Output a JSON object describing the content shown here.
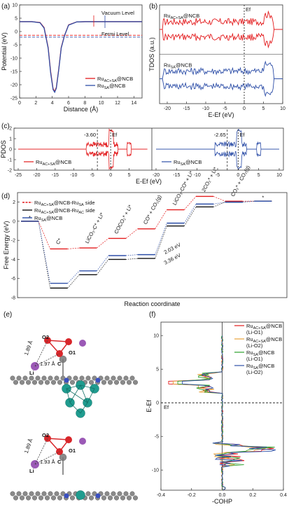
{
  "chart_data": [
    {
      "panel": "(a)",
      "type": "line",
      "xlabel": "Distance (Å)",
      "ylabel": "Potential (eV)",
      "xlim": [
        0,
        15
      ],
      "ylim": [
        -25,
        10
      ],
      "xticks": [
        "0",
        "2",
        "4",
        "6",
        "8",
        "10",
        "12",
        "14"
      ],
      "yticks": [
        "-25",
        "-20",
        "-15",
        "-10",
        "-5",
        "0",
        "5",
        "10"
      ],
      "annotations": [
        "Vacuum Level",
        "Fermi Level"
      ],
      "vacuum_level": 3.7,
      "fermi_levels": {
        "ac_sa": -1.4,
        "sa": -2.1
      },
      "series": [
        {
          "name": "Ru<sub>AC+SA</sub>@NCB",
          "label_main": "Ru",
          "label_sub": "AC+SA",
          "label_tail": "@NCB",
          "color": "#e31a1c",
          "x": [
            0,
            1.5,
            2.5,
            3.0,
            3.5,
            3.8,
            4.1,
            4.3,
            4.5,
            4.8,
            5.1,
            5.5,
            6.0,
            7.0,
            8.0,
            15
          ],
          "y": [
            3.7,
            3.7,
            3.4,
            1.5,
            -6,
            -15,
            -21.5,
            -22.5,
            -21,
            -14,
            -6,
            -1.5,
            2.5,
            3.6,
            3.7,
            3.7
          ]
        },
        {
          "name": "Ru<sub>SA</sub>@NCB",
          "label_main": "Ru",
          "label_sub": "SA",
          "label_tail": "@NCB",
          "color": "#2e4fa8",
          "x": [
            0,
            1.5,
            2.5,
            3.0,
            3.5,
            3.8,
            4.1,
            4.3,
            4.5,
            4.8,
            5.1,
            5.5,
            6.0,
            7.0,
            8.0,
            15
          ],
          "y": [
            3.7,
            3.7,
            3.3,
            1.3,
            -6.3,
            -15.5,
            -21.8,
            -22.8,
            -21.3,
            -14.3,
            -6.2,
            -1.6,
            2.4,
            3.6,
            3.7,
            3.7
          ]
        }
      ]
    },
    {
      "panel": "(b)",
      "type": "line",
      "xlabel": "E-E<sub>f</sub> (eV)",
      "ylabel": "TDOS (a.u.)",
      "xlim": [
        -22,
        10
      ],
      "xticks": [
        "-20",
        "-15",
        "-10",
        "-5",
        "0",
        "5",
        "10"
      ],
      "fermi_label": "E<sub>f</sub>",
      "series": [
        {
          "name": "Ru<sub>AC+SA</sub>@NCB",
          "label_main": "Ru",
          "label_sub": "AC+SA",
          "label_tail": "@NCB",
          "color": "#e31a1c",
          "band_start": -21,
          "band_end": 7.5
        },
        {
          "name": "Ru<sub>SA</sub>@NCB",
          "label_main": "Ru",
          "label_sub": "SA",
          "label_tail": "@NCB",
          "color": "#2e4fa8",
          "band_start": -21,
          "band_end": 7.5
        }
      ]
    },
    {
      "panel": "(c)",
      "type": "line",
      "xlabel": "E-E<sub>f</sub> (eV)",
      "ylabel": "PDOS",
      "ylim": [
        -2,
        2
      ],
      "yticks": [
        "2",
        "1",
        "0",
        "-1",
        "-2"
      ],
      "xticks_left": [
        "-25",
        "-20",
        "-15",
        "-10",
        "-5",
        "0",
        "5"
      ],
      "xticks_right": [
        "-20",
        "-15",
        "-10",
        "-5",
        "0",
        "5",
        "10"
      ],
      "fermi_label": "E<sub>f</sub>",
      "series": [
        {
          "name": "Ru<sub>AC+SA</sub>@NCB",
          "label_main": "Ru",
          "label_sub": "AC+SA",
          "label_tail": "@NCB",
          "color": "#e31a1c",
          "d_band_center": -3.6,
          "d_band_label": "-3.60"
        },
        {
          "name": "Ru<sub>SA</sub>@NCB",
          "label_main": "Ru",
          "label_sub": "SA",
          "label_tail": "@NCB",
          "color": "#2e4fa8",
          "d_band_center": -2.65,
          "d_band_label": "-2.65"
        }
      ]
    },
    {
      "panel": "(d)",
      "type": "line",
      "xlabel": "Reaction coordinate",
      "ylabel": "Free Energy (eV)",
      "ylim": [
        -8,
        3
      ],
      "yticks": [
        "2",
        "0",
        "-2",
        "-4",
        "-6",
        "-8"
      ],
      "steps": [
        "*",
        "C*",
        "LiCO3-C* + Li*",
        "COCO2* + Li*",
        "CO* + CO2(g)",
        "LiCO3-CO* + Li*",
        "2CO2* + Li*",
        "CO2* + CO2(g)",
        "*"
      ],
      "step_labels": [
        {
          "main": "*",
          "sup": ""
        },
        {
          "main": "C",
          "sup": "*"
        },
        {
          "main": "LiCO₃-C",
          "sup": "* + Li*"
        },
        {
          "main": "COCO₂",
          "sup": "* + Li*"
        },
        {
          "main": "CO",
          "sup": "* + CO₂(g)"
        },
        {
          "main": "LiCO₃-CO",
          "sup": "* + Li*"
        },
        {
          "main": "2CO₂",
          "sup": "* + Li*"
        },
        {
          "main": "CO₂",
          "sup": "* + CO₂(g)"
        },
        {
          "main": "*",
          "sup": ""
        }
      ],
      "annotations": [
        {
          "text": "2.03 eV",
          "color": "#e31a1c"
        },
        {
          "text": "3.36 eV",
          "color": "#2e4fa8"
        }
      ],
      "series": [
        {
          "name": "Ru<sub>AC+SA</sub>@NCB-Ru<sub>SA</sub> side",
          "color": "#e31a1c",
          "dash": true,
          "values": [
            0,
            -2.9,
            -2.8,
            -1.8,
            -0.8,
            1.2,
            2.6,
            2.1,
            2.1
          ]
        },
        {
          "name": "Ru<sub>AC+SA</sub>@NCB-Ru<sub>AC</sub> side",
          "color": "#111111",
          "dash": false,
          "values": [
            0,
            -7.0,
            -5.6,
            -4.0,
            -3.9,
            -0.5,
            1.5,
            2.0,
            2.1
          ]
        },
        {
          "name": "Ru<sub>SA</sub>@NCB",
          "color": "#2e4fa8",
          "dash": false,
          "values": [
            0,
            -6.5,
            -5.2,
            -3.6,
            -3.5,
            -0.2,
            1.8,
            2.0,
            2.1
          ]
        }
      ]
    },
    {
      "panel": "(e)",
      "type": "diagram",
      "labels_top": {
        "bond1": "1.89 Å",
        "bond2": "1.97 Å",
        "o2": "O2",
        "o1": "O1",
        "c": "C",
        "li": "Li"
      },
      "labels_bottom": {
        "bond1": "1.89 Å",
        "bond2": "1.93 Å",
        "o2": "O2",
        "o1": "O1",
        "c": "C",
        "li": "Li"
      }
    },
    {
      "panel": "(f)",
      "type": "line",
      "xlabel": "-COHP",
      "ylabel": "E-E<sub>f</sub>",
      "xlim": [
        -0.4,
        0.4
      ],
      "ylim": [
        -13,
        12
      ],
      "xticks": [
        "-0.4",
        "-0.2",
        "0.0",
        "0.2",
        "0.4"
      ],
      "yticks": [
        "10",
        "5",
        "0",
        "-5",
        "-10"
      ],
      "fermi_label": "E<sub>f</sub>",
      "series": [
        {
          "name": "Ru<sub>AC+SA</sub>@NCB (Li-O1)",
          "label_main": "Ru",
          "label_sub": "AC+SA",
          "label_tail": "@NCB",
          "label_line2": "(Li-O1)",
          "color": "#e31a1c"
        },
        {
          "name": "Ru<sub>AC+SA</sub>@NCB (Li-O2)",
          "label_main": "Ru",
          "label_sub": "AC+SA",
          "label_tail": "@NCB",
          "label_line2": "(Li-O2)",
          "color": "#e8a33d"
        },
        {
          "name": "Ru<sub>SA</sub>@NCB (Li-O1)",
          "label_main": "Ru",
          "label_sub": "SA",
          "label_tail": "@NCB",
          "label_line2": "(Li-O1)",
          "color": "#2ca02c"
        },
        {
          "name": "Ru<sub>SA</sub>@NCB (Li-O2)",
          "label_main": "Ru",
          "label_sub": "SA",
          "label_tail": "@NCB",
          "label_line2": "(Li-O2)",
          "color": "#2e4fa8"
        }
      ]
    }
  ]
}
